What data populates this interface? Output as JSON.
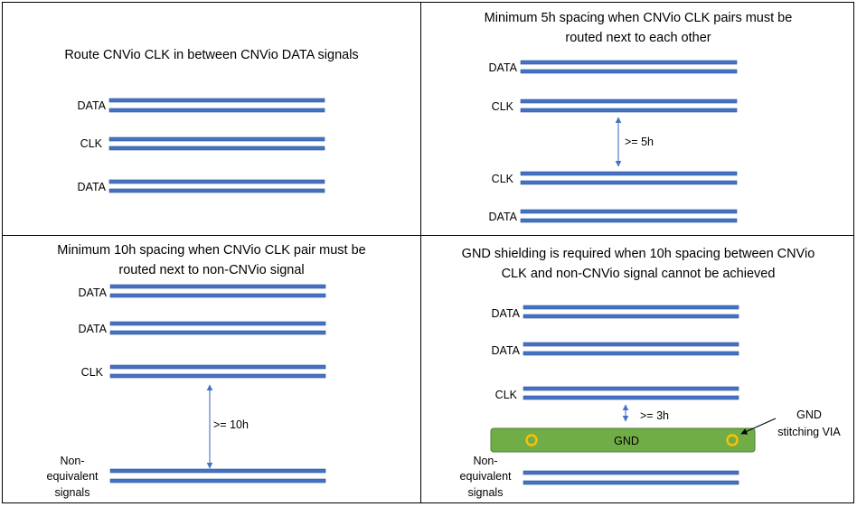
{
  "panels": {
    "top_left": {
      "caption": "Route CNVio CLK in between CNVio DATA signals",
      "labels": [
        "DATA",
        "CLK",
        "DATA"
      ]
    },
    "top_right": {
      "caption_line1": "Minimum 5h spacing when CNVio CLK pairs must be",
      "caption_line2": "routed next to each other",
      "labels": [
        "DATA",
        "CLK",
        "CLK",
        "DATA"
      ],
      "spacing": ">= 5h"
    },
    "bottom_left": {
      "caption_line1": "Minimum 10h spacing when CNVio CLK pair must be",
      "caption_line2": "routed next to non-CNVio signal",
      "labels": [
        "DATA",
        "DATA",
        "CLK"
      ],
      "non_equiv": [
        "Non-",
        "equivalent",
        "signals"
      ],
      "spacing": ">= 10h"
    },
    "bottom_right": {
      "caption_line1": "GND shielding is required when 10h spacing between CNVio",
      "caption_line2": "CLK and non-CNVio signal cannot be achieved",
      "labels": [
        "DATA",
        "DATA",
        "CLK"
      ],
      "non_equiv": [
        "Non-",
        "equivalent",
        "signals"
      ],
      "spacing": ">= 3h",
      "gnd_label": "GND",
      "via_label": [
        "GND",
        "stitching VIA"
      ]
    }
  },
  "colors": {
    "trace": "#4472c4",
    "gnd_fill": "#70ad47",
    "via": "#ffc000"
  }
}
